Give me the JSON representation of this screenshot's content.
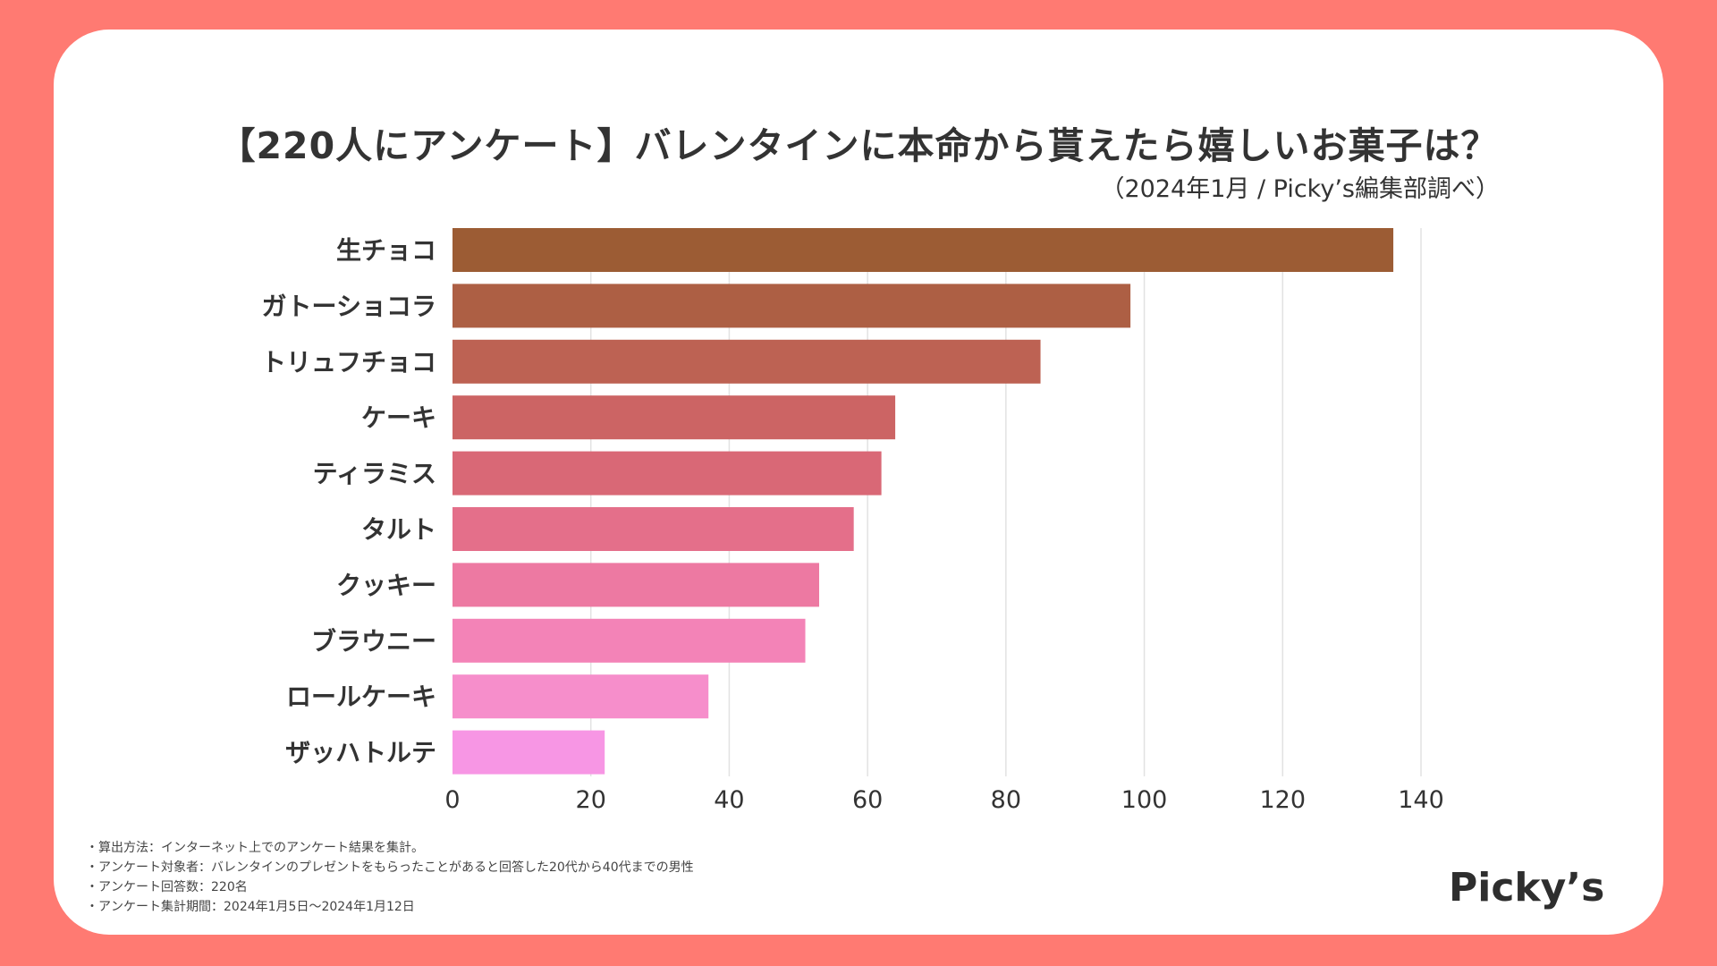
{
  "title": "【220人にアンケート】バレンタインに本命から貰えたら嬉しいお菓子は？",
  "subtitle": "（2024年1月 / Picky’s編集部調べ）",
  "chart_data": {
    "type": "bar",
    "orientation": "horizontal",
    "title": "【220人にアンケート】バレンタインに本命から貰えたら嬉しいお菓子は？",
    "subtitle": "（2024年1月 / Picky’s編集部調べ）",
    "categories": [
      "生チョコ",
      "ガトーショコラ",
      "トリュフチョコ",
      "ケーキ",
      "ティラミス",
      "タルト",
      "クッキー",
      "ブラウニー",
      "ロールケーキ",
      "ザッハトルテ"
    ],
    "values": [
      136,
      98,
      85,
      64,
      62,
      58,
      53,
      51,
      37,
      22
    ],
    "colors": [
      "#9c5c34",
      "#ad5f44",
      "#bd6253",
      "#cc6464",
      "#d96876",
      "#e46f8a",
      "#ed79a2",
      "#f383b7",
      "#f68ecb",
      "#f796e4"
    ],
    "xlim": [
      0,
      140
    ],
    "xticks": [
      0,
      20,
      40,
      60,
      80,
      100,
      120,
      140
    ],
    "xlabel": "",
    "ylabel": "",
    "grid": true,
    "legend": "none"
  },
  "notes": [
    "・算出方法：インターネット上でのアンケート結果を集計。",
    "・アンケート対象者：バレンタインのプレゼントをもらったことがあると回答した20代から40代までの男性",
    "・アンケート回答数：220名",
    "・アンケート集計期間：2024年1月5日〜2024年1月12日"
  ],
  "logo": "Picky’s",
  "colors": {
    "background": "#ff7a72",
    "card": "#ffffff",
    "text": "#333333",
    "grid": "#e2e2e2"
  }
}
